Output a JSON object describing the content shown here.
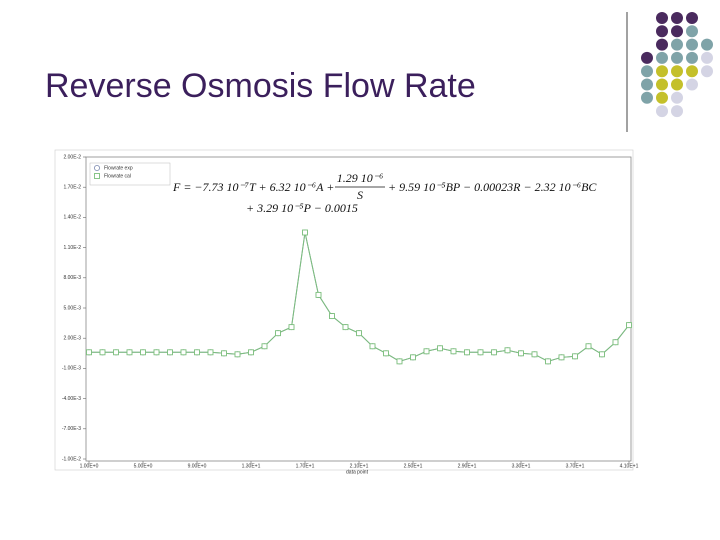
{
  "slide": {
    "title": "Reverse Osmosis Flow Rate"
  },
  "chart_data": {
    "type": "line",
    "xlabel": "data point",
    "legend": "top-left",
    "annotations": [
      "F = −7.73 10⁻⁷T + 6.32 10⁻⁶A +",
      "1.29 10⁻⁶",
      "S",
      "+ 9.59 10⁻⁵BP − 0.00023R − 2.32 10⁻⁶BC",
      "+ 3.29 10⁻⁵P − 0.0015"
    ],
    "x": [
      1,
      2,
      3,
      4,
      5,
      6,
      7,
      8,
      9,
      10,
      11,
      12,
      13,
      14,
      15,
      16,
      17,
      18,
      19,
      20,
      21,
      22,
      23,
      24,
      25,
      26,
      27,
      28,
      29,
      30,
      31,
      32,
      33,
      34,
      35,
      36,
      37,
      38,
      39,
      40,
      41
    ],
    "series": [
      {
        "name": "Flowrate exp",
        "color": "#8a96b8",
        "marker": "circle",
        "values": [
          0.0006,
          0.0006,
          0.0006,
          0.0006,
          0.0006,
          0.0006,
          0.0006,
          0.0006,
          0.0006,
          0.0006,
          0.0005,
          0.0004,
          0.0006,
          0.0012,
          0.0025,
          0.0031,
          0.0125,
          0.0063,
          0.0042,
          0.0031,
          0.0025,
          0.0012,
          0.0005,
          -0.0003,
          0.0001,
          0.0007,
          0.001,
          0.0007,
          0.0006,
          0.0006,
          0.0006,
          0.0008,
          0.0005,
          0.0004,
          -0.0003,
          0.0001,
          0.0002,
          0.0012,
          0.0004,
          0.0016,
          0.0033
        ]
      },
      {
        "name": "Flowrate cal",
        "color": "#7cbf7c",
        "marker": "square",
        "values": [
          0.0006,
          0.0006,
          0.0006,
          0.0006,
          0.0006,
          0.0006,
          0.0006,
          0.0006,
          0.0006,
          0.0006,
          0.0005,
          0.0004,
          0.0006,
          0.0012,
          0.0025,
          0.0031,
          0.0125,
          0.0063,
          0.0042,
          0.0031,
          0.0025,
          0.0012,
          0.0005,
          -0.0003,
          0.0001,
          0.0007,
          0.001,
          0.0007,
          0.0006,
          0.0006,
          0.0006,
          0.0008,
          0.0005,
          0.0004,
          -0.0003,
          0.0001,
          0.0002,
          0.0012,
          0.0004,
          0.0016,
          0.0033
        ]
      }
    ],
    "xlim": [
      1,
      41
    ],
    "xticks": [
      {
        "value": 1,
        "label": "1.00E+0"
      },
      {
        "value": 5,
        "label": "5.00E+0"
      },
      {
        "value": 9,
        "label": "9.00E+0"
      },
      {
        "value": 13,
        "label": "1.30E+1"
      },
      {
        "value": 17,
        "label": "1.70E+1"
      },
      {
        "value": 21,
        "label": "2.10E+1"
      },
      {
        "value": 25,
        "label": "2.50E+1"
      },
      {
        "value": 29,
        "label": "2.90E+1"
      },
      {
        "value": 33,
        "label": "3.30E+1"
      },
      {
        "value": 37,
        "label": "3.70E+1"
      },
      {
        "value": 41,
        "label": "4.10E+1"
      }
    ],
    "ylim": [
      -0.01,
      0.02
    ],
    "yticks": [
      {
        "value": 0.02,
        "label": "2.00E-2"
      },
      {
        "value": 0.017,
        "label": "1.70E-2"
      },
      {
        "value": 0.014,
        "label": "1.40E-2"
      },
      {
        "value": 0.011,
        "label": "1.10E-2"
      },
      {
        "value": 0.008,
        "label": "8.00E-3"
      },
      {
        "value": 0.005,
        "label": "5.00E-3"
      },
      {
        "value": 0.002,
        "label": "2.00E-3"
      },
      {
        "value": -0.001,
        "label": "-1.00E-3"
      },
      {
        "value": -0.004,
        "label": "-4.00E-3"
      },
      {
        "value": -0.007,
        "label": "-7.00E-3"
      },
      {
        "value": -0.01,
        "label": "-1.00E-2"
      }
    ]
  }
}
